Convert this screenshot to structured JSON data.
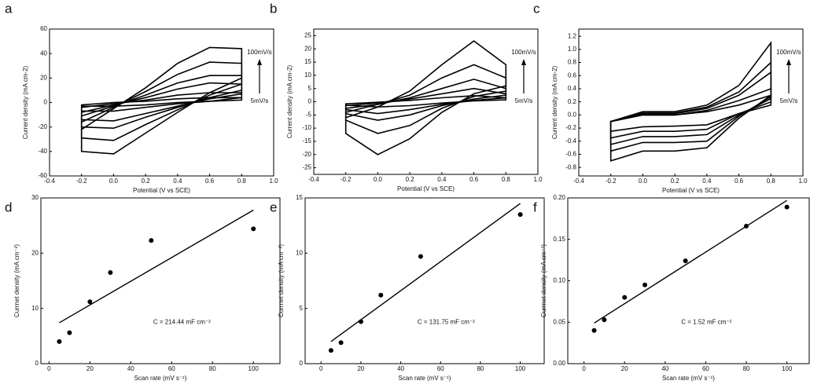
{
  "chart_data": [
    {
      "type": "line",
      "closed": true,
      "label": "a",
      "xlabel": "Potential (V vs SCE)",
      "ylabel": "Current density (mA cm-2)",
      "xlim": [
        -0.4,
        1.0
      ],
      "ylim": [
        -60,
        60
      ],
      "xticks": [
        -0.4,
        -0.2,
        {
          "value": 0,
          "label": "0.0"
        },
        0.2,
        0.4,
        0.6,
        0.8,
        {
          "value": 1,
          "label": "1.0"
        }
      ],
      "yticks": [
        -60,
        -40,
        -20,
        0,
        20,
        40,
        60
      ],
      "annotations": [
        "100mV/s",
        "5mV/s"
      ],
      "color": "#000000",
      "x": [
        -0.2,
        0,
        0.2,
        0.4,
        0.6,
        0.8,
        0.8,
        0.6,
        0.4,
        0.2,
        0,
        -0.2
      ],
      "series": [
        {
          "values": [
            -22,
            -5,
            12,
            32,
            45,
            44,
            20,
            8,
            -8,
            -25,
            -42,
            -40
          ]
        },
        {
          "values": [
            -16,
            -4,
            9,
            23,
            33,
            32,
            15,
            6,
            -6,
            -18,
            -31,
            -29
          ]
        },
        {
          "values": [
            -11,
            -3,
            6,
            16,
            22,
            22,
            10,
            4,
            -4,
            -12,
            -21,
            -20
          ]
        },
        {
          "values": [
            -8,
            -2,
            4,
            11,
            16,
            15,
            7,
            3,
            -3,
            -9,
            -15,
            -14
          ]
        },
        {
          "values": [
            -4,
            -1,
            2,
            6,
            8,
            8,
            4,
            1,
            -1,
            -4,
            -7,
            -7
          ]
        },
        {
          "values": [
            -2,
            0,
            1,
            3,
            4,
            4,
            2,
            1,
            0,
            -2,
            -3,
            -3
          ]
        }
      ]
    },
    {
      "type": "line",
      "closed": true,
      "label": "b",
      "xlabel": "Potential (V vs SCE)",
      "ylabel": "Current density (mA cm-2)",
      "xlim": [
        -0.4,
        1.0
      ],
      "ylim": [
        -27.5,
        27.5
      ],
      "xticks": [
        -0.4,
        -0.2,
        {
          "value": 0,
          "label": "0.0"
        },
        0.2,
        0.4,
        0.6,
        0.8,
        {
          "value": 1,
          "label": "1.0"
        }
      ],
      "yticks": [
        -25,
        -20,
        -15,
        -10,
        -5,
        0,
        5,
        10,
        15,
        20,
        25
      ],
      "annotations": [
        "100mV/s",
        "5mV/s"
      ],
      "color": "#000000",
      "x": [
        -0.2,
        0,
        0.2,
        0.4,
        0.6,
        0.8,
        0.8,
        0.6,
        0.4,
        0.2,
        0,
        -0.2
      ],
      "series": [
        {
          "values": [
            -6,
            -2,
            4,
            14,
            23,
            14,
            6,
            3,
            -4,
            -14,
            -20,
            -12
          ]
        },
        {
          "values": [
            -4,
            -1,
            2.5,
            9,
            14,
            9,
            4,
            2,
            -2.5,
            -9,
            -12,
            -7
          ]
        },
        {
          "values": [
            -2.5,
            -1,
            1.5,
            5,
            8.5,
            5,
            2.5,
            1,
            -1.5,
            -5,
            -7,
            -4.5
          ]
        },
        {
          "values": [
            -1.5,
            -0.5,
            1,
            3,
            5,
            3,
            1.5,
            0.5,
            -1,
            -3,
            -4.5,
            -3
          ]
        },
        {
          "values": [
            -0.8,
            -0.2,
            0.5,
            1.5,
            2.3,
            1.5,
            0.7,
            0.3,
            -0.5,
            -1.5,
            -2,
            -1.3
          ]
        }
      ]
    },
    {
      "type": "line",
      "closed": true,
      "label": "c",
      "xlabel": "Potential (V vs SCE)",
      "ylabel": "Current density (mA cm-2)",
      "xlim": [
        -0.4,
        1.0
      ],
      "ylim": [
        -0.93,
        1.31
      ],
      "xticks": [
        -0.4,
        -0.2,
        {
          "value": 0,
          "label": "0.0"
        },
        0.2,
        0.4,
        0.6,
        0.8,
        {
          "value": 1,
          "label": "1.0"
        }
      ],
      "yticks": [
        -0.8,
        -0.6,
        -0.4,
        -0.2,
        {
          "value": 0,
          "label": "0.0"
        },
        0.2,
        0.4,
        0.6,
        0.8,
        {
          "value": 1,
          "label": "1.0"
        },
        1.2
      ],
      "annotations": [
        "100mV/s",
        "5mV/s"
      ],
      "color": "#000000",
      "x": [
        -0.2,
        0,
        0.2,
        0.4,
        0.6,
        0.8,
        0.8,
        0.6,
        0.4,
        0.2,
        0,
        -0.2
      ],
      "series": [
        {
          "values": [
            -0.1,
            0.05,
            0.05,
            0.15,
            0.45,
            1.1,
            0.3,
            -0.05,
            -0.5,
            -0.55,
            -0.55,
            -0.7
          ]
        },
        {
          "values": [
            -0.1,
            0.03,
            0.03,
            0.12,
            0.35,
            0.8,
            0.28,
            -0.02,
            -0.4,
            -0.42,
            -0.42,
            -0.55
          ]
        },
        {
          "values": [
            -0.1,
            0.02,
            0.02,
            0.1,
            0.3,
            0.65,
            0.25,
            0,
            -0.3,
            -0.33,
            -0.33,
            -0.45
          ]
        },
        {
          "values": [
            -0.1,
            0,
            0,
            0.07,
            0.22,
            0.4,
            0.2,
            0.02,
            -0.22,
            -0.25,
            -0.25,
            -0.35
          ]
        },
        {
          "values": [
            -0.1,
            0,
            0,
            0.05,
            0.15,
            0.3,
            0.15,
            0.02,
            -0.15,
            -0.17,
            -0.18,
            -0.25
          ]
        }
      ]
    },
    {
      "type": "scatter",
      "label": "d",
      "xlabel": "Scan rate (mV s⁻¹)",
      "ylabel": "Currnet density (mA cm⁻²)",
      "xlim": [
        -4,
        113
      ],
      "ylim": [
        0,
        30
      ],
      "xticks": [
        0,
        20,
        40,
        60,
        80,
        100
      ],
      "yticks": [
        0,
        10,
        20,
        30
      ],
      "annotations": [
        "C = 214.44 mF cm⁻²"
      ],
      "color": "#000000",
      "x": [
        5,
        10,
        20,
        30,
        50,
        100
      ],
      "values": [
        4.0,
        5.6,
        11.2,
        16.5,
        22.3,
        24.4
      ],
      "fit": {
        "x": [
          5,
          100
        ],
        "values": [
          7.4,
          27.8
        ]
      }
    },
    {
      "type": "scatter",
      "label": "e",
      "xlabel": "Scan rate (mV s⁻¹)",
      "ylabel": "Currnet density (mA cm⁻²)",
      "xlim": [
        -8,
        112
      ],
      "ylim": [
        0,
        15
      ],
      "xticks": [
        0,
        20,
        40,
        60,
        80,
        100
      ],
      "yticks": [
        0,
        5,
        10,
        15
      ],
      "annotations": [
        "C = 131.75 mF cm⁻²"
      ],
      "color": "#000000",
      "x": [
        5,
        10,
        20,
        30,
        50,
        100
      ],
      "values": [
        1.2,
        1.9,
        3.8,
        6.2,
        9.7,
        13.5
      ],
      "fit": {
        "x": [
          5,
          100
        ],
        "values": [
          2.0,
          14.5
        ]
      }
    },
    {
      "type": "scatter",
      "label": "f",
      "xlabel": "Scan rate (mV s⁻¹)",
      "ylabel": "Currnet density (mA cm⁻²)",
      "xlim": [
        -8,
        111
      ],
      "ylim": [
        0,
        0.2
      ],
      "xticks": [
        0,
        20,
        40,
        60,
        80,
        100
      ],
      "yticks": [
        {
          "value": 0,
          "label": "0.00"
        },
        {
          "value": 0.05,
          "label": "0.05"
        },
        {
          "value": 0.1,
          "label": "0.10"
        },
        {
          "value": 0.15,
          "label": "0.15"
        },
        {
          "value": 0.2,
          "label": "0.20"
        }
      ],
      "annotations": [
        "C = 1.52 mF cm⁻²"
      ],
      "color": "#000000",
      "x": [
        5,
        10,
        20,
        30,
        50,
        80,
        100
      ],
      "values": [
        0.04,
        0.053,
        0.08,
        0.095,
        0.124,
        0.166,
        0.189
      ],
      "fit": {
        "x": [
          5,
          100
        ],
        "values": [
          0.049,
          0.197
        ]
      }
    }
  ]
}
